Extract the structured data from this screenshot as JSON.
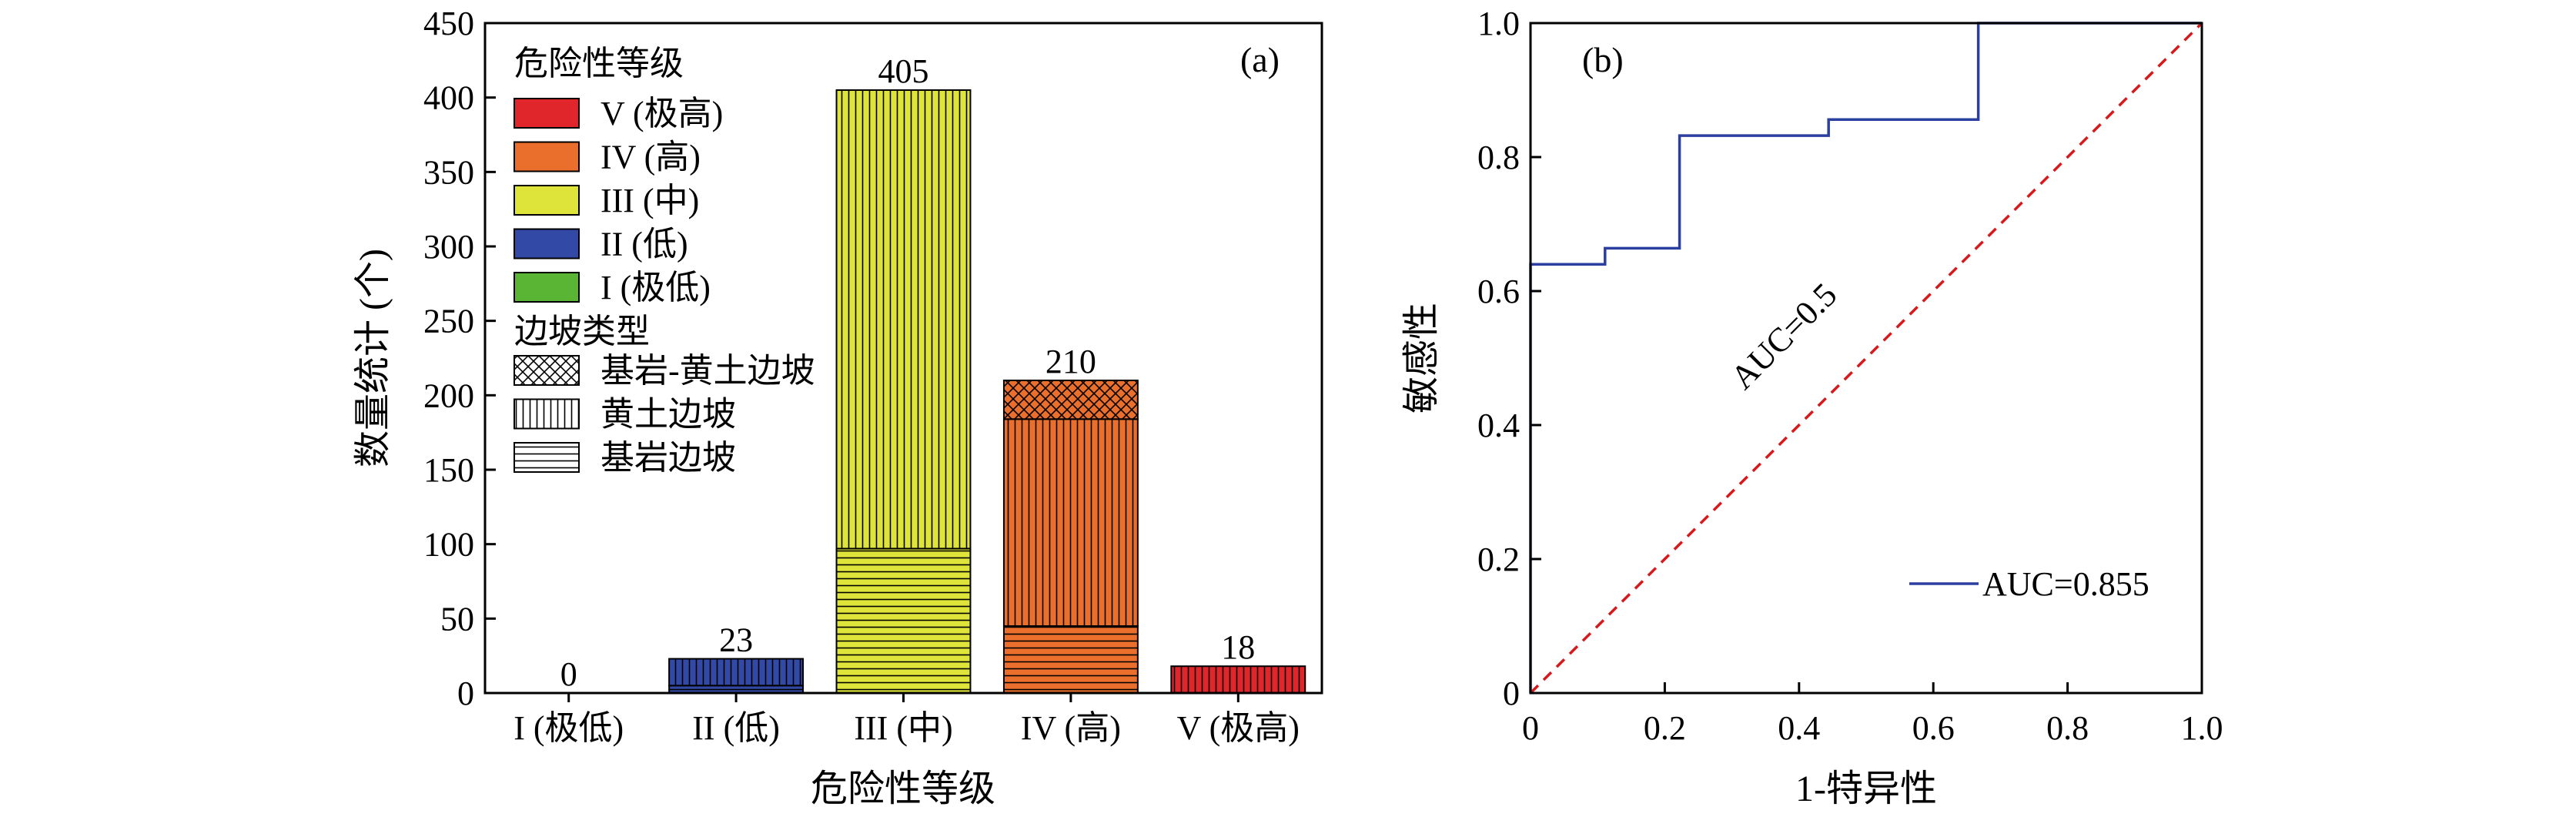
{
  "chart_data": [
    {
      "type": "bar",
      "panel_label": "(a)",
      "xlabel": "危险性等级",
      "ylabel": "数量统计 (个)",
      "categories": [
        "I (极低)",
        "II (低)",
        "III (中)",
        "IV (高)",
        "V (极高)"
      ],
      "category_colors": [
        "#5bb535",
        "#3349a6",
        "#dfe43a",
        "#ea6f2d",
        "#e0262a"
      ],
      "totals": [
        0,
        23,
        405,
        210,
        18
      ],
      "stack_series": [
        {
          "name": "基岩边坡",
          "pattern": "horizontal",
          "values": [
            0,
            5,
            97,
            45,
            0
          ]
        },
        {
          "name": "黄土边坡",
          "pattern": "vertical",
          "values": [
            0,
            18,
            308,
            139,
            18
          ]
        },
        {
          "name": "基岩-黄土边坡",
          "pattern": "crosshatch",
          "values": [
            0,
            0,
            0,
            26,
            0
          ]
        }
      ],
      "ylim": [
        0,
        450
      ],
      "yticks": [
        0,
        50,
        100,
        150,
        200,
        250,
        300,
        350,
        400,
        450
      ],
      "legend": {
        "position": "top-left",
        "level_title": "危险性等级",
        "level_items": [
          {
            "label": "V (极高)",
            "color": "#e0262a"
          },
          {
            "label": "IV (高)",
            "color": "#ea6f2d"
          },
          {
            "label": "III (中)",
            "color": "#dfe43a"
          },
          {
            "label": "II (低)",
            "color": "#3349a6"
          },
          {
            "label": "I (极低)",
            "color": "#5bb535"
          }
        ],
        "type_title": "边坡类型",
        "type_items": [
          {
            "label": "基岩-黄土边坡",
            "pattern": "crosshatch"
          },
          {
            "label": "黄土边坡",
            "pattern": "vertical"
          },
          {
            "label": "基岩边坡",
            "pattern": "horizontal"
          }
        ]
      }
    },
    {
      "type": "line",
      "panel_label": "(b)",
      "xlabel": "1-特异性",
      "ylabel": "敏感性",
      "xlim": [
        0,
        1
      ],
      "ylim": [
        0,
        1
      ],
      "xticks": [
        "0",
        "0.2",
        "0.4",
        "0.6",
        "0.8",
        "1.0"
      ],
      "yticks": [
        "0",
        "0.2",
        "0.4",
        "0.6",
        "0.8",
        "1.0"
      ],
      "series": [
        {
          "name": "AUC=0.855",
          "color": "#2b3fa0",
          "points": [
            [
              0,
              0
            ],
            [
              0,
              0.64
            ],
            [
              0.111,
              0.64
            ],
            [
              0.111,
              0.664
            ],
            [
              0.222,
              0.664
            ],
            [
              0.222,
              0.832
            ],
            [
              0.444,
              0.832
            ],
            [
              0.444,
              0.856
            ],
            [
              0.667,
              0.856
            ],
            [
              0.667,
              1.0
            ],
            [
              1.0,
              1.0
            ]
          ]
        },
        {
          "label": "AUC=0.5",
          "color": "#d7191c",
          "dashed": true,
          "points": [
            [
              0,
              0
            ],
            [
              1,
              1
            ]
          ]
        }
      ],
      "legend": {
        "position": "bottom-right"
      }
    }
  ]
}
